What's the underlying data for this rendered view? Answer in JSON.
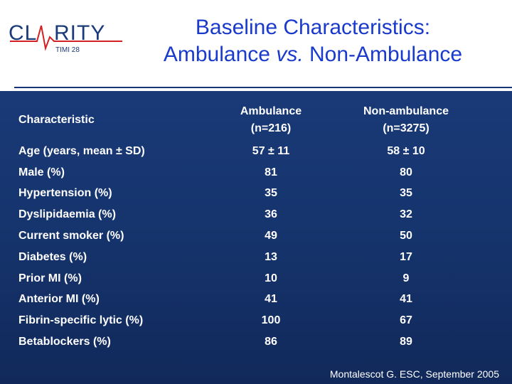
{
  "logo": {
    "text_left": "CL",
    "text_right": "RITY",
    "sub": "TIMI 28",
    "colors": {
      "text": "#1a3a78",
      "ecg": "#d42020",
      "sub_bg": "#1a3a78"
    }
  },
  "title": {
    "line1": "Baseline Characteristics:",
    "line2_a": "Ambulance ",
    "line2_vs": "vs.",
    "line2_b": " Non-Ambulance"
  },
  "table": {
    "header": {
      "col1": "Characteristic",
      "col2_line1": "Ambulance",
      "col2_line2": "(n=216)",
      "col3_line1": "Non-ambulance",
      "col3_line2": "(n=3275)"
    },
    "rows": [
      {
        "label": "Age (years, mean ± SD)",
        "ambulance": "57 ± 11",
        "non_ambulance": "58 ± 10"
      },
      {
        "label": "Male (%)",
        "ambulance": "81",
        "non_ambulance": "80"
      },
      {
        "label": "Hypertension (%)",
        "ambulance": "35",
        "non_ambulance": "35"
      },
      {
        "label": "Dyslipidaemia (%)",
        "ambulance": "36",
        "non_ambulance": "32"
      },
      {
        "label": "Current smoker (%)",
        "ambulance": "49",
        "non_ambulance": "50"
      },
      {
        "label": "Diabetes (%)",
        "ambulance": "13",
        "non_ambulance": "17"
      },
      {
        "label": "Prior MI (%)",
        "ambulance": "10",
        "non_ambulance": "9"
      },
      {
        "label": "Anterior MI (%)",
        "ambulance": "41",
        "non_ambulance": "41"
      },
      {
        "label": "Fibrin-specific lytic (%)",
        "ambulance": "100",
        "non_ambulance": "67"
      },
      {
        "label": "Betablockers (%)",
        "ambulance": "86",
        "non_ambulance": "89"
      }
    ]
  },
  "footer": {
    "citation": "Montalescot G. ESC, September 2005"
  },
  "colors": {
    "background": "#1a3a78",
    "title": "#1a3acc",
    "text": "#ffffff"
  }
}
